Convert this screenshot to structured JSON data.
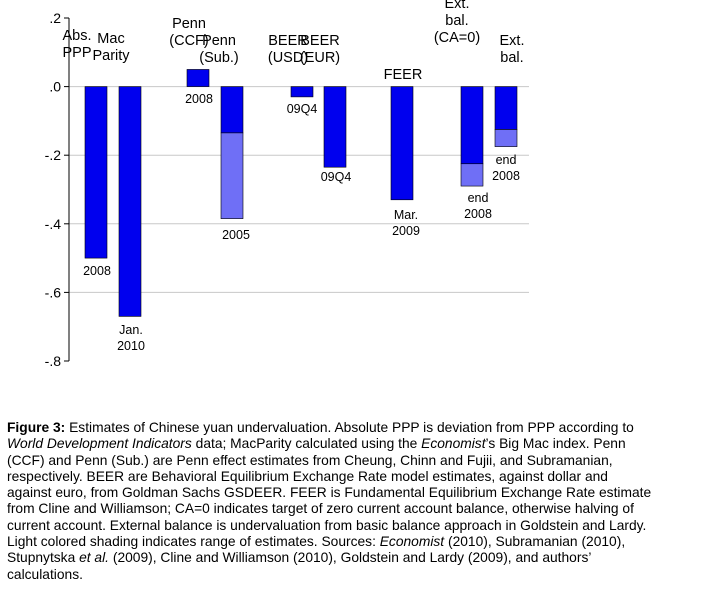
{
  "chart_data": {
    "type": "bar",
    "title": "",
    "xlabel": "",
    "ylabel": "",
    "ylim": [
      -0.8,
      0.2
    ],
    "yticks": [
      0.2,
      0.0,
      -0.2,
      -0.4,
      -0.6,
      -0.8
    ],
    "ytick_labels": [
      ".2",
      ".0",
      "-.2",
      "-.4",
      "-.6",
      "-.8"
    ],
    "grid": true,
    "colors": {
      "bar": "#0000ee",
      "range": "#6f6ff6",
      "grid": "#c8c8c8"
    },
    "bars": [
      {
        "category": [
          "Abs.",
          "PPP"
        ],
        "value": -0.5,
        "range_to": null,
        "annotation": [
          "2008"
        ]
      },
      {
        "category": [
          "Mac",
          "Parity"
        ],
        "value": -0.67,
        "range_to": null,
        "annotation": [
          "Jan.",
          "2010"
        ]
      },
      {
        "category": [
          "Penn",
          "(CCF)"
        ],
        "value": 0.05,
        "range_to": null,
        "annotation": [
          "2008"
        ]
      },
      {
        "category": [
          "Penn",
          "(Sub.)"
        ],
        "value": -0.135,
        "range_to": -0.385,
        "annotation": [
          "2005"
        ]
      },
      {
        "category": [
          "BEER",
          "(USD)"
        ],
        "value": -0.03,
        "range_to": null,
        "annotation": [
          "09Q4"
        ]
      },
      {
        "category": [
          "BEER",
          "(EUR)"
        ],
        "value": -0.235,
        "range_to": null,
        "annotation": [
          "09Q4"
        ]
      },
      {
        "category": [
          "FEER"
        ],
        "value": -0.33,
        "range_to": null,
        "annotation": [
          "Mar.",
          "2009"
        ]
      },
      {
        "category": [
          "Ext.",
          "bal.",
          "(CA=0)"
        ],
        "value": -0.225,
        "range_to": -0.29,
        "annotation": [
          "end",
          "2008"
        ]
      },
      {
        "category": [
          "Ext.",
          "bal."
        ],
        "value": -0.125,
        "range_to": -0.175,
        "annotation": [
          "end",
          "2008"
        ]
      }
    ]
  },
  "caption": {
    "lines": [
      [
        {
          "t": "Figure 3:",
          "s": "b"
        },
        {
          "t": " Estimates of Chinese yuan undervaluation. Absolute PPP is deviation from PPP according to"
        }
      ],
      [
        {
          "t": "World Development Indicators",
          "s": "i"
        },
        {
          "t": " data; MacParity calculated using the "
        },
        {
          "t": "Economist",
          "s": "i"
        },
        {
          "t": "’s Big Mac index. Penn"
        }
      ],
      [
        {
          "t": "(CCF) and Penn (Sub.) are Penn effect estimates from Cheung, Chinn and Fujii, and Subramanian,"
        }
      ],
      [
        {
          "t": "respectively. BEER are Behavioral Equilibrium Exchange Rate model estimates, against dollar and"
        }
      ],
      [
        {
          "t": "against euro, from Goldman Sachs GSDEER. FEER is Fundamental Equilibrium Exchange Rate estimate"
        }
      ],
      [
        {
          "t": "from Cline and Williamson; CA=0 indicates target of zero current account balance, otherwise halving of"
        }
      ],
      [
        {
          "t": "current account. External balance is undervaluation from basic balance approach in Goldstein and Lardy."
        }
      ],
      [
        {
          "t": "Light colored shading indicates range of estimates. Sources: "
        },
        {
          "t": "Economist",
          "s": "i"
        },
        {
          "t": " (2010), Subramanian (2010),"
        }
      ],
      [
        {
          "t": "Stupnytska "
        },
        {
          "t": "et al.",
          "s": "i"
        },
        {
          "t": " (2009), Cline and Williamson (2010), Goldstein and Lardy (2009), and authors’"
        }
      ],
      [
        {
          "t": "calculations."
        }
      ]
    ]
  }
}
